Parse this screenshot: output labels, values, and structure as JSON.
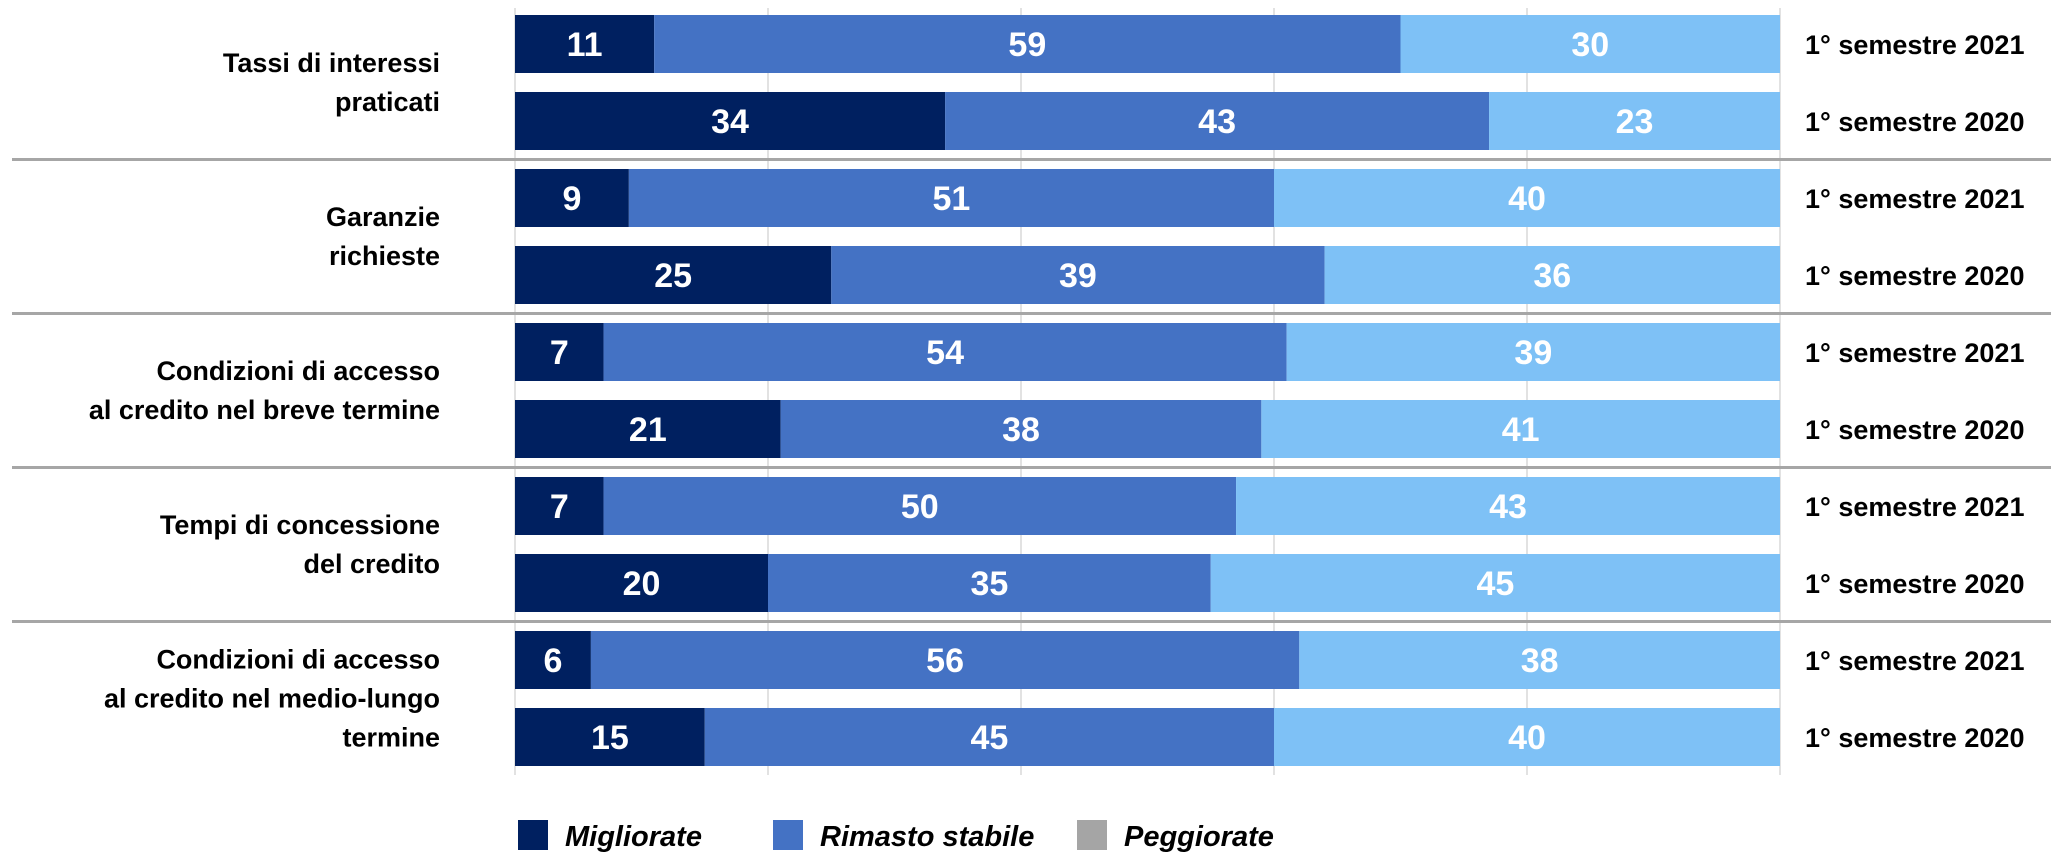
{
  "chart_data": {
    "type": "bar",
    "orientation": "horizontal",
    "stacked": true,
    "xlim": [
      0,
      100
    ],
    "grid": true,
    "legend_placement": "bottom",
    "series": [
      {
        "name": "Migliorate",
        "color": "#002060"
      },
      {
        "name": "Rimasto stabile",
        "color": "#4472C4"
      },
      {
        "name": "Peggiorate",
        "color": "#A5A5A5"
      }
    ],
    "bar_third_segment_color": "#7EC1F6",
    "groups": [
      {
        "label_lines": [
          "Tassi di interessi",
          "praticati"
        ],
        "bars": [
          {
            "period": "1° semestre 2021",
            "values": [
              11,
              59,
              30
            ]
          },
          {
            "period": "1° semestre 2020",
            "values": [
              34,
              43,
              23
            ]
          }
        ]
      },
      {
        "label_lines": [
          "Garanzie",
          "richieste"
        ],
        "bars": [
          {
            "period": "1° semestre 2021",
            "values": [
              9,
              51,
              40
            ]
          },
          {
            "period": "1° semestre 2020",
            "values": [
              25,
              39,
              36
            ]
          }
        ]
      },
      {
        "label_lines": [
          "Condizioni di accesso",
          "al credito nel breve termine"
        ],
        "bars": [
          {
            "period": "1° semestre 2021",
            "values": [
              7,
              54,
              39
            ]
          },
          {
            "period": "1° semestre 2020",
            "values": [
              21,
              38,
              41
            ]
          }
        ]
      },
      {
        "label_lines": [
          "Tempi di concessione",
          "del credito"
        ],
        "bars": [
          {
            "period": "1° semestre 2021",
            "values": [
              7,
              50,
              43
            ]
          },
          {
            "period": "1° semestre 2020",
            "values": [
              20,
              35,
              45
            ]
          }
        ]
      },
      {
        "label_lines": [
          "Condizioni di accesso",
          "al credito nel medio-lungo",
          "termine"
        ],
        "bars": [
          {
            "period": "1° semestre 2021",
            "values": [
              6,
              56,
              38
            ]
          },
          {
            "period": "1° semestre 2020",
            "values": [
              15,
              45,
              40
            ]
          }
        ]
      }
    ]
  }
}
